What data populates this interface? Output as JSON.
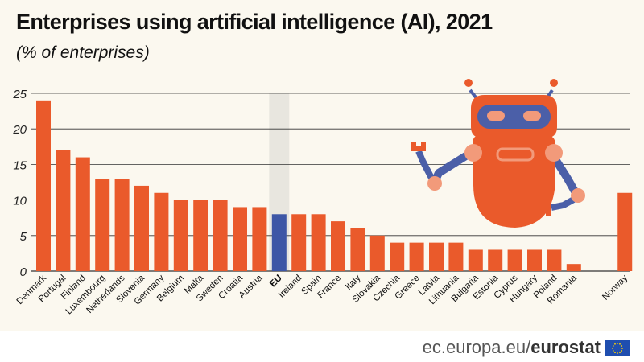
{
  "header": {
    "title": "Enterprises using artificial intelligence (AI), 2021",
    "subtitle": "(% of enterprises)"
  },
  "footer": {
    "source_prefix": "ec.europa.eu/",
    "source_brand": "eurostat"
  },
  "colors": {
    "bar": "#ea5a2b",
    "eu_bar": "#3d56a6",
    "eu_band": "#e8e6df",
    "grid": "#333333",
    "robot_body": "#ea5a2b",
    "robot_face": "#4b5fa8",
    "robot_joint": "#f29a7a",
    "flag_blue": "#1f4eaf",
    "flag_star": "#ffd200"
  },
  "chart_data": {
    "type": "bar",
    "title": "Enterprises using artificial intelligence (AI), 2021",
    "subtitle": "(% of enterprises)",
    "ylim": [
      0,
      25
    ],
    "yticks": [
      0,
      5,
      10,
      15,
      20,
      25
    ],
    "grid": true,
    "categories": [
      "Denmark",
      "Portugal",
      "Finland",
      "Luxembourg",
      "Netherlands",
      "Slovenia",
      "Germany",
      "Belgium",
      "Malta",
      "Sweden",
      "Croatia",
      "Austria",
      "EU",
      "Ireland",
      "Spain",
      "France",
      "Italy",
      "Slovakia",
      "Czechia",
      "Greece",
      "Latvia",
      "Lithuania",
      "Bulgaria",
      "Estonia",
      "Cyprus",
      "Hungary",
      "Poland",
      "Romania",
      "Norway"
    ],
    "values": [
      24,
      17,
      16,
      13,
      13,
      12,
      11,
      10,
      10,
      10,
      9,
      9,
      8,
      8,
      8,
      7,
      6,
      5,
      4,
      4,
      4,
      4,
      3,
      3,
      3,
      3,
      3,
      1,
      11
    ],
    "highlight": "EU",
    "separated": "Norway"
  }
}
